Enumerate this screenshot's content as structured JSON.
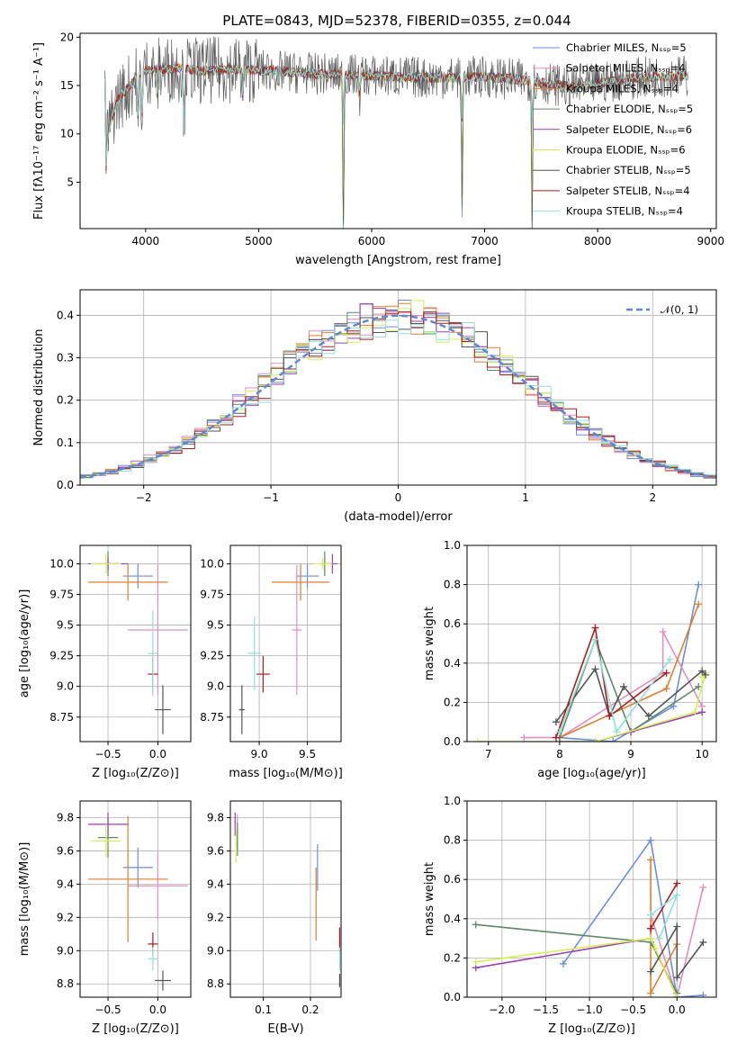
{
  "title": "PLATE=0843, MJD=52378, FIBERID=0355, z=0.044",
  "colors": [
    "#6a8ee0",
    "#e58cc0",
    "#e07e2e",
    "#5b8a64",
    "#9b3db8",
    "#d6ef52",
    "#555555",
    "#b01a1a",
    "#8fe1dc"
  ],
  "chart_data": [
    {
      "type": "line",
      "panel": "spectrum",
      "xlabel": "wavelength [Angstrom, rest frame]",
      "ylabel": "Flux [fλ10⁻¹⁷ erg cm⁻² s⁻¹ A⁻¹]",
      "xlim": [
        3420,
        9050
      ],
      "ylim": [
        0.2,
        20.4
      ],
      "xticks": [
        4000,
        5000,
        6000,
        7000,
        8000,
        9000
      ],
      "yticks": [
        5,
        10,
        15,
        20
      ],
      "legend_position": "top-right",
      "legend": [
        "Chabrier MILES, Nₛₛₚ=5",
        "Salpeter MILES, Nₛₛₚ=4",
        "Kroupa MILES, Nₛₛₚ=4",
        "Chabrier ELODIE, Nₛₛₚ=5",
        "Salpeter ELODIE, Nₛₛₚ=6",
        "Kroupa ELODIE, Nₛₛₚ=6",
        "Chabrier STELIB, Nₛₛₚ=5",
        "Salpeter STELIB, Nₛₛₚ=4",
        "Kroupa STELIB, Nₛₛₚ=4"
      ],
      "continuum": {
        "x": [
          3650,
          3750,
          3900,
          4000,
          4300,
          4500,
          4800,
          5000,
          5500,
          6000,
          6500,
          7000,
          7400,
          7800,
          8200,
          8500,
          8800
        ],
        "y": [
          9.5,
          13.5,
          15.5,
          16.5,
          16.8,
          16.5,
          16.7,
          16.6,
          16.2,
          16.0,
          15.8,
          15.9,
          15.5,
          14.8,
          15.6,
          15.9,
          16.0
        ]
      },
      "features": [
        {
          "x": 3650,
          "depth": 3
        },
        {
          "x": 3934,
          "depth": 6
        },
        {
          "x": 3968,
          "depth": 5
        },
        {
          "x": 4102,
          "depth": 3
        },
        {
          "x": 4340,
          "depth": 6
        },
        {
          "x": 4861,
          "depth": 3
        },
        {
          "x": 5175,
          "depth": 2
        },
        {
          "x": 5750,
          "depth": 15.5
        },
        {
          "x": 5893,
          "depth": 2.5
        },
        {
          "x": 6800,
          "depth": 14
        },
        {
          "x": 7420,
          "depth": 14
        }
      ]
    },
    {
      "type": "line",
      "panel": "residuals",
      "xlabel": "(data-model)/error",
      "ylabel": "Normed distribution",
      "xlim": [
        -2.5,
        2.5
      ],
      "ylim": [
        0,
        0.46
      ],
      "xticks": [
        -2,
        -1,
        0,
        1,
        2
      ],
      "yticks": [
        0.0,
        0.1,
        0.2,
        0.3,
        0.4
      ],
      "grid": true,
      "legend": [
        "𝒩(0, 1)"
      ],
      "legend_position": "top-right",
      "histogram_bin_width": 0.1,
      "histogram_note": "9 step histograms approximately following N(0,1)"
    },
    {
      "type": "scatter",
      "panel": "age-vs-Z",
      "xlabel": "Z [log₁₀(Z/Z⊙)]",
      "ylabel": "age  [log₁₀(age/yr)]",
      "xlim": [
        -0.78,
        0.33
      ],
      "ylim": [
        8.55,
        10.15
      ],
      "xticks": [
        -0.5,
        0.0
      ],
      "xtick_labels": [
        "−0.5",
        "0.0"
      ],
      "yticks": [
        8.75,
        9.0,
        9.25,
        9.5,
        9.75,
        10.0
      ],
      "grid": true,
      "points": [
        {
          "x": -0.2,
          "y": 9.9,
          "xerr": 0.15,
          "yerr": 0.1
        },
        {
          "x": 0.0,
          "y": 9.46,
          "xerr": 0.3,
          "yerr": 0.53
        },
        {
          "x": -0.3,
          "y": 9.85,
          "xerr": 0.4,
          "yerr": 0.15
        },
        {
          "x": -0.5,
          "y": 10.0,
          "xerr": 0.1,
          "yerr": 0.1
        },
        {
          "x": -0.5,
          "y": 10.0,
          "xerr": 0.2,
          "yerr": 0.05
        },
        {
          "x": -0.52,
          "y": 10.0,
          "xerr": 0.15,
          "yerr": 0.08
        },
        {
          "x": 0.05,
          "y": 8.81,
          "xerr": 0.08,
          "yerr": 0.2
        },
        {
          "x": -0.05,
          "y": 9.1,
          "xerr": 0.05,
          "yerr": 0.15
        },
        {
          "x": -0.05,
          "y": 9.27,
          "xerr": 0.05,
          "yerr": 0.35
        }
      ]
    },
    {
      "type": "scatter",
      "panel": "age-vs-mass",
      "xlabel": "mass [log₁₀(M/M⊙)]",
      "ylabel": "",
      "xlim": [
        8.7,
        9.85
      ],
      "ylim": [
        8.55,
        10.15
      ],
      "xticks": [
        9.0,
        9.5
      ],
      "yticks": [
        8.75,
        9.0,
        9.25,
        9.5,
        9.75,
        10.0
      ],
      "grid": true,
      "points": [
        {
          "x": 9.5,
          "y": 9.9,
          "xerr": 0.12,
          "yerr": 0.1
        },
        {
          "x": 9.39,
          "y": 9.46,
          "xerr": 0.05,
          "yerr": 0.53
        },
        {
          "x": 9.43,
          "y": 9.85,
          "xerr": 0.3,
          "yerr": 0.15
        },
        {
          "x": 9.68,
          "y": 10.0,
          "xerr": 0.05,
          "yerr": 0.1
        },
        {
          "x": 9.76,
          "y": 10.0,
          "xerr": 0.05,
          "yerr": 0.08
        },
        {
          "x": 9.66,
          "y": 10.0,
          "xerr": 0.1,
          "yerr": 0.05
        },
        {
          "x": 8.82,
          "y": 8.81,
          "xerr": 0.03,
          "yerr": 0.2
        },
        {
          "x": 9.04,
          "y": 9.1,
          "xerr": 0.07,
          "yerr": 0.15
        },
        {
          "x": 8.95,
          "y": 9.27,
          "xerr": 0.07,
          "yerr": 0.3
        }
      ]
    },
    {
      "type": "line",
      "panel": "mass-weight-vs-age",
      "xlabel": "age  [log₁₀(age/yr)]",
      "ylabel": "mass weight",
      "xlim": [
        6.7,
        10.2
      ],
      "ylim": [
        0,
        1.0
      ],
      "xticks": [
        7,
        8,
        9,
        10
      ],
      "yticks": [
        0.0,
        0.2,
        0.4,
        0.6,
        0.8,
        1.0
      ],
      "grid": true,
      "series": [
        {
          "x": [
            8.0,
            8.75,
            9.6,
            9.95
          ],
          "y": [
            0.02,
            0.0,
            0.18,
            0.8
          ]
        },
        {
          "x": [
            7.5,
            8.0,
            9.45,
            9.45,
            10.0
          ],
          "y": [
            0.02,
            0.02,
            0.35,
            0.56,
            0.18
          ]
        },
        {
          "x": [
            8.0,
            9.5,
            9.95
          ],
          "y": [
            0.02,
            0.27,
            0.7
          ]
        },
        {
          "x": [
            8.0,
            8.5,
            9.0,
            9.95
          ],
          "y": [
            0.02,
            0.52,
            0.05,
            0.28
          ]
        },
        {
          "x": [
            8.0,
            8.5,
            9.0,
            10.0
          ],
          "y": [
            0.0,
            0.0,
            0.05,
            0.15
          ]
        },
        {
          "x": [
            6.85,
            8.5,
            9.9,
            10.05,
            10.0
          ],
          "y": [
            0.0,
            0.0,
            0.15,
            0.35,
            0.33
          ]
        },
        {
          "x": [
            7.95,
            8.5,
            8.7,
            8.9,
            9.25,
            10.0,
            10.05
          ],
          "y": [
            0.1,
            0.37,
            0.13,
            0.28,
            0.13,
            0.36,
            0.34
          ]
        },
        {
          "x": [
            7.95,
            8.5,
            8.7,
            9.5
          ],
          "y": [
            0.02,
            0.58,
            0.13,
            0.35
          ]
        },
        {
          "x": [
            8.0,
            8.5,
            8.8,
            9.55
          ],
          "y": [
            0.05,
            0.52,
            0.05,
            0.42
          ]
        }
      ]
    },
    {
      "type": "scatter",
      "panel": "mass-vs-Z",
      "xlabel": "Z [log₁₀(Z/Z⊙)]",
      "ylabel": "mass [log₁₀(M/M⊙)]",
      "xlim": [
        -0.78,
        0.33
      ],
      "ylim": [
        8.72,
        9.9
      ],
      "xticks": [
        -0.5,
        0.0
      ],
      "xtick_labels": [
        "−0.5",
        "0.0"
      ],
      "yticks": [
        8.8,
        9.0,
        9.2,
        9.4,
        9.6,
        9.8
      ],
      "grid": true,
      "points": [
        {
          "x": -0.2,
          "y": 9.5,
          "xerr": 0.15,
          "yerr": 0.12
        },
        {
          "x": 0.0,
          "y": 9.39,
          "xerr": 0.3,
          "yerr": 0.2
        },
        {
          "x": -0.3,
          "y": 9.43,
          "xerr": 0.4,
          "yerr": 0.38
        },
        {
          "x": -0.5,
          "y": 9.68,
          "xerr": 0.1,
          "yerr": 0.12
        },
        {
          "x": -0.5,
          "y": 9.76,
          "xerr": 0.2,
          "yerr": 0.07
        },
        {
          "x": -0.52,
          "y": 9.66,
          "xerr": 0.15,
          "yerr": 0.1
        },
        {
          "x": 0.05,
          "y": 8.82,
          "xerr": 0.08,
          "yerr": 0.06
        },
        {
          "x": -0.05,
          "y": 9.04,
          "xerr": 0.05,
          "yerr": 0.07
        },
        {
          "x": -0.05,
          "y": 8.95,
          "xerr": 0.05,
          "yerr": 0.07
        }
      ]
    },
    {
      "type": "scatter",
      "panel": "mass-vs-EBV",
      "xlabel": "E(B-V)",
      "ylabel": "",
      "xlim": [
        0.03,
        0.265
      ],
      "ylim": [
        8.72,
        9.9
      ],
      "xticks": [
        0.1,
        0.2
      ],
      "yticks": [
        8.8,
        9.0,
        9.2,
        9.4,
        9.6,
        9.8
      ],
      "grid": true,
      "points": [
        {
          "x": 0.215,
          "y": 9.5,
          "yerr": 0.14
        },
        {
          "x": 0.045,
          "y": 9.72,
          "yerr": 0.1
        },
        {
          "x": 0.212,
          "y": 9.28,
          "yerr": 0.22
        },
        {
          "x": 0.045,
          "y": 9.67,
          "yerr": 0.1
        },
        {
          "x": 0.04,
          "y": 9.76,
          "yerr": 0.07
        },
        {
          "x": 0.042,
          "y": 9.63,
          "yerr": 0.1
        },
        {
          "x": 0.262,
          "y": 8.82,
          "yerr": 0.04
        },
        {
          "x": 0.262,
          "y": 9.07,
          "yerr": 0.07
        },
        {
          "x": 0.262,
          "y": 8.95,
          "yerr": 0.07
        }
      ]
    },
    {
      "type": "line",
      "panel": "mass-weight-vs-Z",
      "xlabel": "Z [log₁₀(Z/Z⊙)]",
      "ylabel": "mass weight",
      "xlim": [
        -2.4,
        0.45
      ],
      "ylim": [
        0,
        1.0
      ],
      "xticks": [
        -2.0,
        -1.5,
        -1.0,
        -0.5,
        0.0
      ],
      "xtick_labels": [
        "−2.0",
        "−1.5",
        "−1.0",
        "−0.5",
        "0.0"
      ],
      "yticks": [
        0.0,
        0.2,
        0.4,
        0.6,
        0.8,
        1.0
      ],
      "grid": true,
      "series": [
        {
          "x": [
            -1.3,
            -0.3,
            0.0,
            0.3
          ],
          "y": [
            0.17,
            0.8,
            0.0,
            0.01
          ]
        },
        {
          "x": [
            -0.3,
            0.0,
            0.3
          ],
          "y": [
            0.42,
            0.0,
            0.56
          ]
        },
        {
          "x": [
            -0.3,
            -0.3,
            0.0
          ],
          "y": [
            0.7,
            0.02,
            0.27
          ]
        },
        {
          "x": [
            -2.3,
            -0.3,
            0.0
          ],
          "y": [
            0.37,
            0.28,
            0.02
          ]
        },
        {
          "x": [
            -2.3,
            -0.3,
            0.0
          ],
          "y": [
            0.15,
            0.3,
            0.0
          ]
        },
        {
          "x": [
            -2.3,
            -0.3,
            -0.25,
            0.0
          ],
          "y": [
            0.18,
            0.3,
            0.25,
            0.0
          ]
        },
        {
          "x": [
            -0.3,
            0.0,
            0.0,
            0.3
          ],
          "y": [
            0.13,
            0.36,
            0.1,
            0.28
          ]
        },
        {
          "x": [
            -0.3,
            0.0,
            -0.3
          ],
          "y": [
            0.35,
            0.58,
            0.35
          ]
        },
        {
          "x": [
            -0.3,
            0.0,
            -0.2
          ],
          "y": [
            0.42,
            0.52,
            0.3
          ]
        }
      ]
    }
  ]
}
